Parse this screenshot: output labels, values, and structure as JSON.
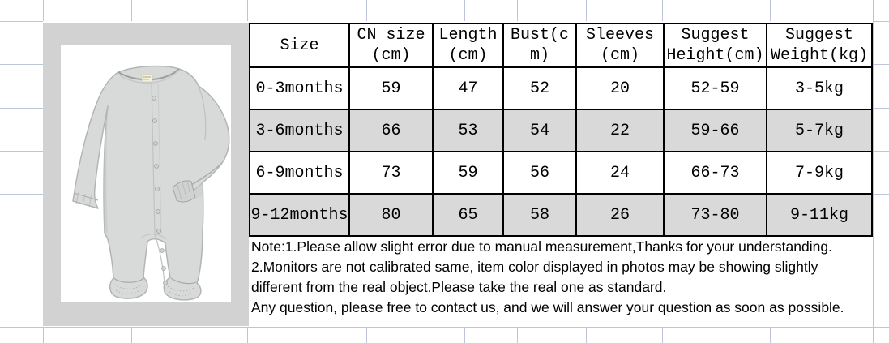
{
  "table": {
    "headers": [
      {
        "line1": "Size",
        "line2": ""
      },
      {
        "line1": "CN size",
        "line2": "(cm)"
      },
      {
        "line1": "Length",
        "line2": "(cm)"
      },
      {
        "line1": "Bust(c",
        "line2": "m)"
      },
      {
        "line1": "Sleeves",
        "line2": "(cm)"
      },
      {
        "line1": "Suggest",
        "line2": "Height(cm)"
      },
      {
        "line1": "Suggest",
        "line2": "Weight(kg)"
      }
    ],
    "rows": [
      {
        "size": "0-3months",
        "cn_size": "59",
        "length": "47",
        "bust": "52",
        "sleeves": "20",
        "suggest_height": "52-59",
        "suggest_weight": "3-5kg"
      },
      {
        "size": "3-6months",
        "cn_size": "66",
        "length": "53",
        "bust": "54",
        "sleeves": "22",
        "suggest_height": "59-66",
        "suggest_weight": "5-7kg"
      },
      {
        "size": "6-9months",
        "cn_size": "73",
        "length": "59",
        "bust": "56",
        "sleeves": "24",
        "suggest_height": "66-73",
        "suggest_weight": "7-9kg"
      },
      {
        "size": "9-12months",
        "cn_size": "80",
        "length": "65",
        "bust": "58",
        "sleeves": "26",
        "suggest_height": "73-80",
        "suggest_weight": "9-11kg"
      }
    ]
  },
  "notes": {
    "lines": [
      "Note:1.Please allow slight error due to manual measurement,Thanks for your understanding.",
      "2.Monitors are not calibrated same, item color displayed in photos may be showing slightly",
      "different from the real object.Please take the real one as standard.",
      "Any question, please free to contact us, and we will answer your question as soon as possible."
    ]
  },
  "colors": {
    "gridline": "#bcc6d8",
    "photo_background": "#d3d2d2",
    "row_shade": "#d9d9d9",
    "table_border": "#000000"
  }
}
